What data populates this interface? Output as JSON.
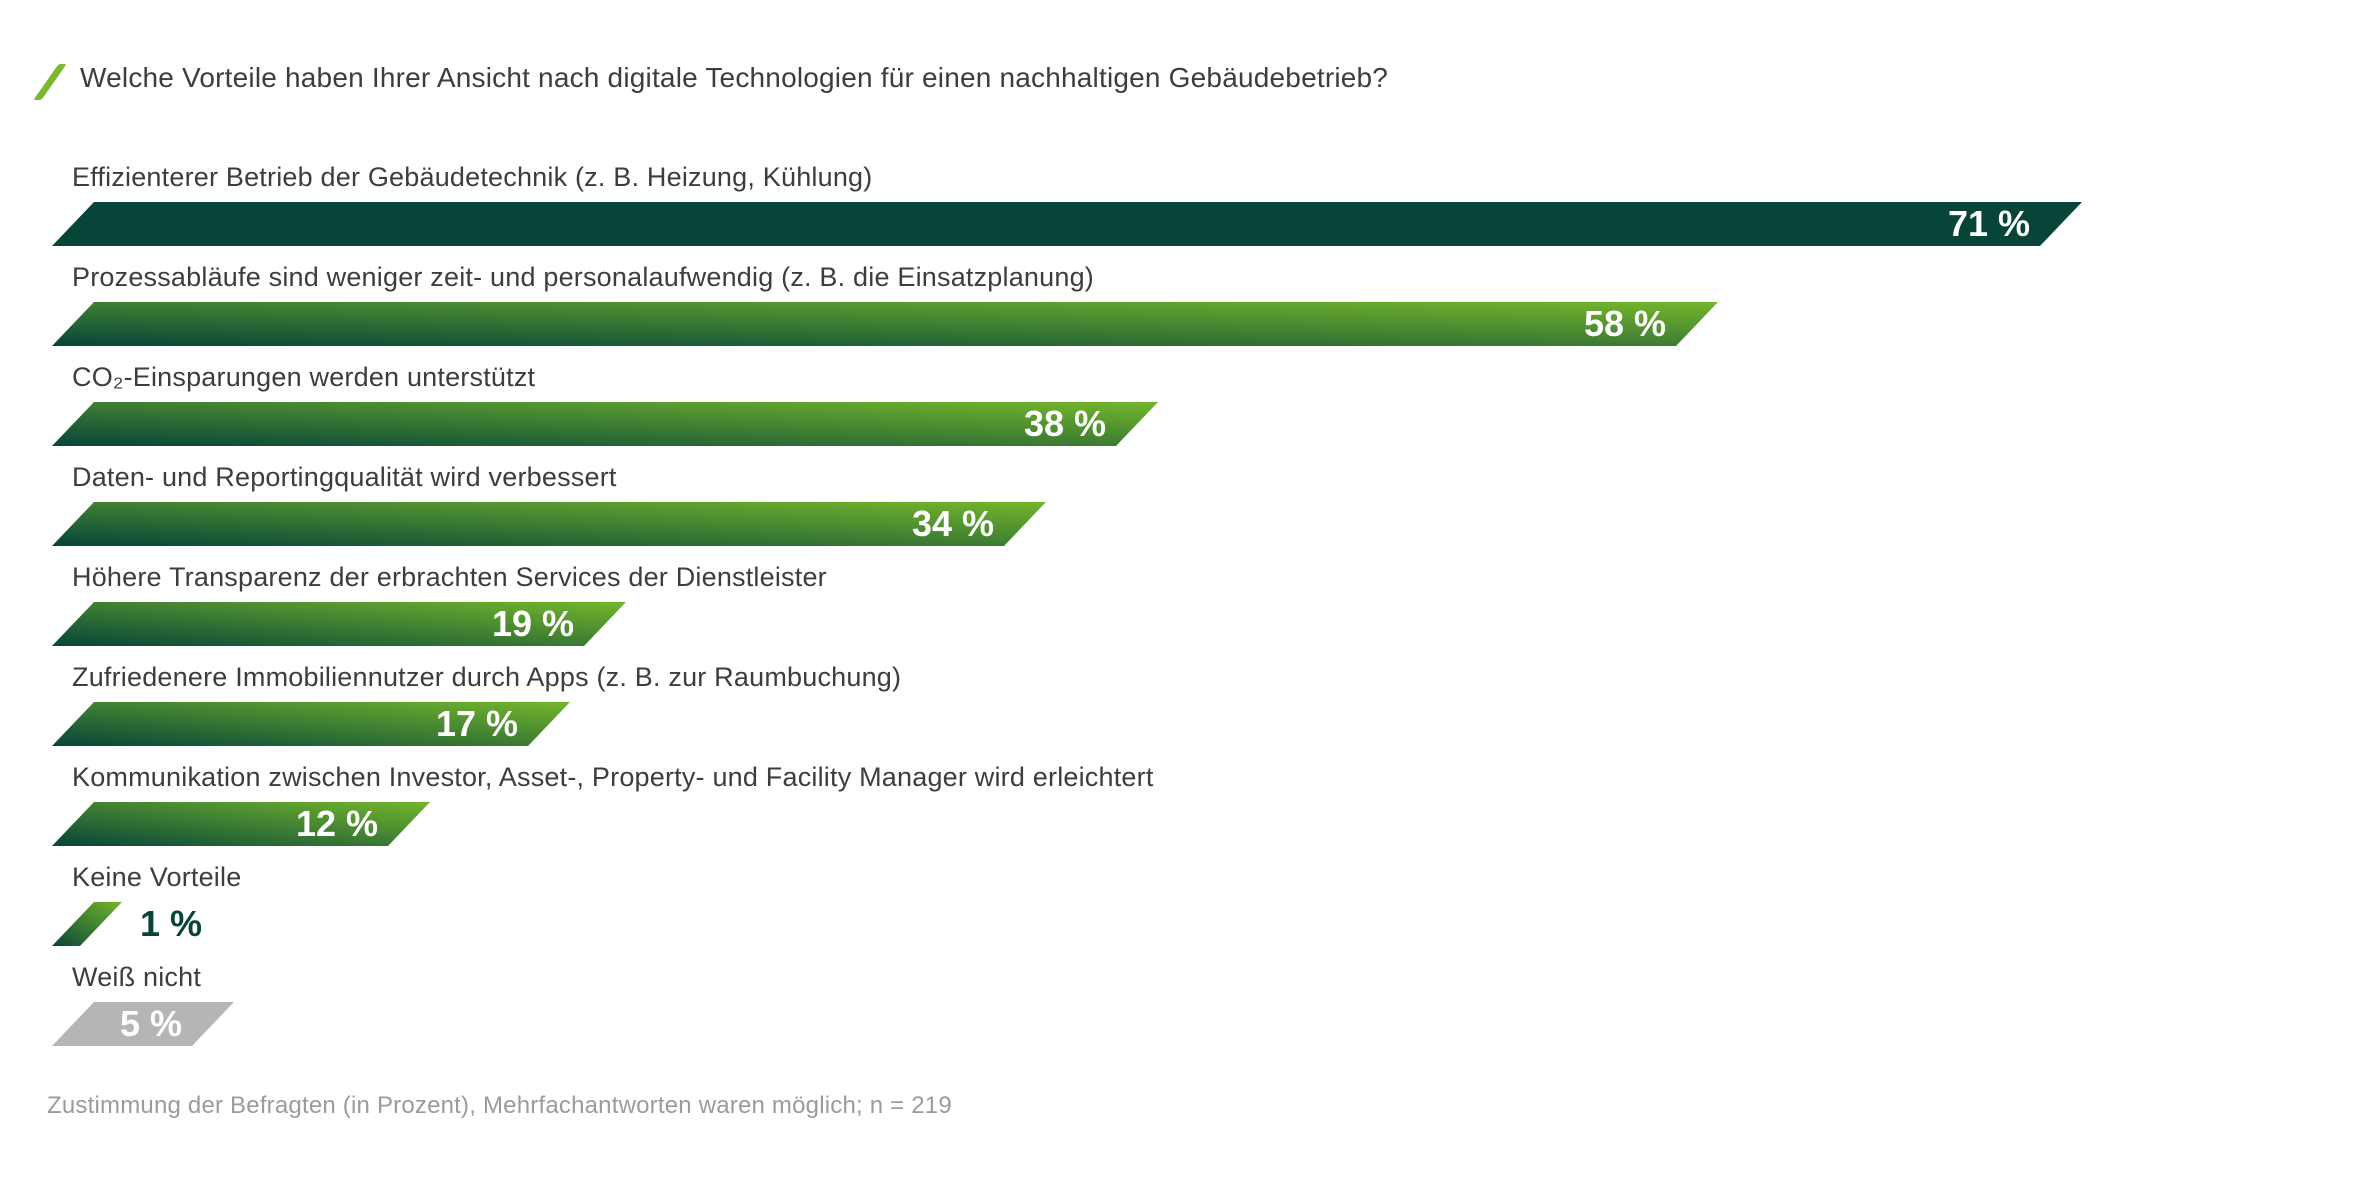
{
  "title": "Welche Vorteile haben Ihrer Ansicht nach digitale Technologien für einen nachhaltigen Gebäudebetrieb?",
  "footnote": "Zustimmung der Befragten (in Prozent), Mehrfachantworten waren möglich; n = 219",
  "colors": {
    "bar_dark_green": "#074539",
    "bar_light_green": "#74b62c",
    "bar_gray": "#b5b5b5",
    "accent_slash_green": "#7ab82d",
    "text": "#3d3d3b",
    "footnote_text": "#9b9b9a",
    "value_text": "#ffffff"
  },
  "chart_data": {
    "type": "bar",
    "orientation": "horizontal",
    "title": "Welche Vorteile haben Ihrer Ansicht nach digitale Technologien für einen nachhaltigen Gebäudebetrieb?",
    "categories": [
      "Effizienterer Betrieb der Gebäudetechnik (z. B. Heizung, Kühlung)",
      "Prozessabläufe sind weniger zeit- und personalaufwendig (z. B. die Einsatzplanung)",
      "CO₂-Einsparungen werden unterstützt",
      "Daten- und Reportingqualität wird verbessert",
      "Höhere Transparenz der erbrachten Services der Dienstleister",
      "Zufriedenere Immobiliennutzer durch Apps (z. B. zur Raumbuchung)",
      "Kommunikation zwischen Investor, Asset-, Property- und Facility Manager wird erleichtert",
      "Keine Vorteile",
      "Weiß nicht"
    ],
    "values": [
      71,
      58,
      38,
      34,
      19,
      17,
      12,
      1,
      5
    ],
    "value_labels": [
      "71 %",
      "58 %",
      "38 %",
      "34 %",
      "19 %",
      "17 %",
      "12 %",
      "1 %",
      "5 %"
    ],
    "bar_styles": [
      "solid-dark",
      "gradient",
      "gradient",
      "gradient",
      "gradient",
      "gradient",
      "gradient",
      "gradient",
      "solid-gray"
    ],
    "value_label_positions": [
      "inside",
      "inside",
      "inside",
      "inside",
      "inside",
      "inside",
      "inside",
      "outside",
      "inside"
    ],
    "unit": "%",
    "xlim": [
      0,
      75
    ],
    "grid": false,
    "legend": "none",
    "footnote": "Zustimmung der Befragten (in Prozent), Mehrfachantworten waren möglich; n = 219"
  }
}
